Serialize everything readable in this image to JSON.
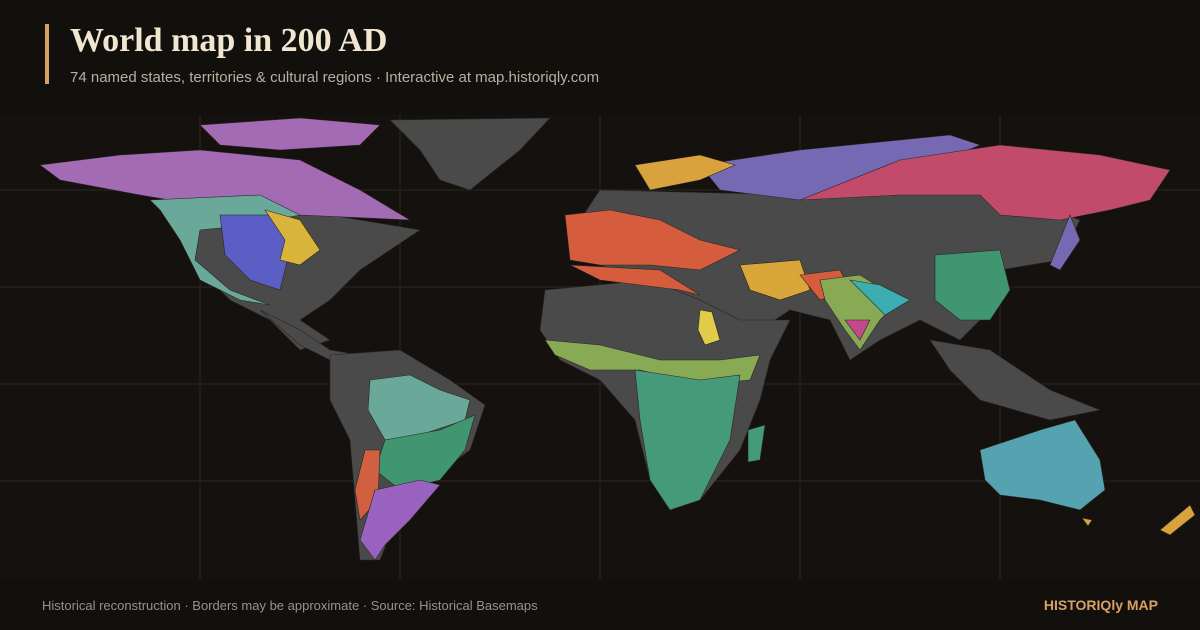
{
  "header": {
    "title": "World map in 200 AD",
    "subtitle": "74 named states, territories & cultural regions · Interactive at map.historiqly.com"
  },
  "footer": {
    "note": "Historical reconstruction · Borders may be approximate · Source: Historical Basemaps",
    "brand": "HISTORIQly MAP"
  }
}
